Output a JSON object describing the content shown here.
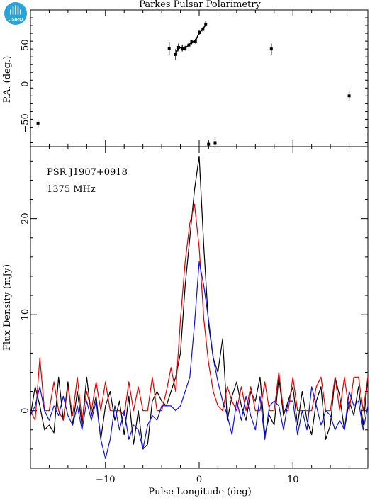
{
  "header": {
    "title": "Parkes Pulsar Polarimetry",
    "logo_text": "CSIRO"
  },
  "annotations": {
    "psr": "PSR J1907+0918",
    "freq": "1375 MHz"
  },
  "chart_data": [
    {
      "type": "scatter",
      "name": "position-angle",
      "title": "Parkes Pulsar Polarimetry",
      "ylabel": "P.A. (deg.)",
      "xlim": [
        -18,
        18
      ],
      "ylim": [
        -80,
        95
      ],
      "yticks": [
        -50,
        0,
        50
      ],
      "yticklabels": [
        "−50",
        "0",
        "50"
      ],
      "points": [
        {
          "x": -17.2,
          "y": -50,
          "err": 5
        },
        {
          "x": -3.2,
          "y": 46,
          "err": 8
        },
        {
          "x": -2.5,
          "y": 38,
          "err": 7
        },
        {
          "x": -2.2,
          "y": 47,
          "err": 5
        },
        {
          "x": -1.8,
          "y": 46,
          "err": 4
        },
        {
          "x": -1.5,
          "y": 46,
          "err": 3
        },
        {
          "x": -1.1,
          "y": 50,
          "err": 3
        },
        {
          "x": -0.8,
          "y": 54,
          "err": 3
        },
        {
          "x": -0.4,
          "y": 55,
          "err": 3
        },
        {
          "x": 0.0,
          "y": 66,
          "err": 3
        },
        {
          "x": 0.4,
          "y": 70,
          "err": 3
        },
        {
          "x": 0.7,
          "y": 77,
          "err": 4
        },
        {
          "x": 1.0,
          "y": -77,
          "err": 6
        },
        {
          "x": 1.7,
          "y": -75,
          "err": 7
        },
        {
          "x": 7.7,
          "y": 45,
          "err": 7
        },
        {
          "x": 16.0,
          "y": -15,
          "err": 7
        }
      ]
    },
    {
      "type": "line",
      "name": "flux-profile",
      "xlabel": "Pulse Longitude (deg)",
      "ylabel": "Flux Density (mJy)",
      "xlim": [
        -18,
        18
      ],
      "ylim": [
        -6,
        27.5
      ],
      "xticks": [
        -10,
        0,
        10
      ],
      "xticklabels": [
        "−10",
        "0",
        "10"
      ],
      "yticks": [
        0,
        10,
        20
      ],
      "yticklabels": [
        "0",
        "10",
        "20"
      ],
      "x": [
        -18,
        -17.5,
        -17,
        -16.5,
        -16,
        -15.5,
        -15,
        -14.5,
        -14,
        -13.5,
        -13,
        -12.5,
        -12,
        -11.5,
        -11,
        -10.5,
        -10,
        -9.5,
        -9,
        -8.5,
        -8,
        -7.5,
        -7,
        -6.5,
        -6,
        -5.5,
        -5,
        -4.5,
        -4,
        -3.5,
        -3,
        -2.5,
        -2,
        -1.5,
        -1,
        -0.5,
        0,
        0.5,
        1,
        1.5,
        2,
        2.5,
        3,
        3.5,
        4,
        4.5,
        5,
        5.5,
        6,
        6.5,
        7,
        7.5,
        8,
        8.5,
        9,
        9.5,
        10,
        10.5,
        11,
        11.5,
        12,
        12.5,
        13,
        13.5,
        14,
        14.5,
        15,
        15.5,
        16,
        16.5,
        17,
        17.5,
        18
      ],
      "series": [
        {
          "name": "total",
          "color": "#000000",
          "values": [
            -0.5,
            2.5,
            0.5,
            -2,
            -1.5,
            -2.3,
            3.5,
            -1,
            3,
            -1.5,
            2,
            -1.5,
            3.5,
            -0.5,
            1.5,
            -3,
            0.5,
            2,
            -1,
            1,
            -2.5,
            1.5,
            -3.5,
            0,
            -4,
            -3.5,
            1,
            2,
            1,
            0.5,
            2,
            3.5,
            6,
            13,
            18,
            23,
            26.5,
            17,
            9,
            5.5,
            4,
            7.5,
            -1,
            1.5,
            3,
            0.5,
            -1,
            2,
            1,
            3.5,
            -2.5,
            -0.5,
            -1.5,
            3.5,
            -0.5,
            1,
            2.5,
            -1.5,
            2,
            -1,
            -2.5,
            1,
            2.5,
            -3,
            -1.5,
            3.5,
            1.5,
            -2,
            1,
            -0.5,
            2.5,
            -1.5,
            3.5
          ]
        },
        {
          "name": "linear",
          "color": "#e00000",
          "values": [
            0,
            -1,
            5.5,
            0,
            0,
            3,
            0,
            -1,
            2.5,
            -0.5,
            3.5,
            -1,
            2,
            0,
            3,
            0,
            3,
            0,
            0,
            0,
            -0.5,
            3,
            0,
            2.5,
            0,
            0,
            3.5,
            0,
            0,
            2,
            4.5,
            2,
            9.5,
            15.5,
            19.5,
            21.5,
            17,
            9.5,
            5,
            2,
            0.5,
            0,
            2.5,
            1,
            0,
            2.5,
            0,
            2.5,
            0,
            0,
            3,
            0,
            0,
            4,
            0,
            0,
            3.5,
            0,
            0,
            0,
            0,
            2.5,
            3.5,
            0,
            0,
            3.5,
            0,
            3.5,
            0,
            3.5,
            3.5,
            0,
            3.5
          ]
        },
        {
          "name": "circular",
          "color": "#1010e0",
          "values": [
            -0.5,
            0.5,
            2.5,
            0,
            -1,
            0.5,
            -0.5,
            1.5,
            -0.5,
            -1.5,
            0.5,
            -2,
            1,
            -1,
            1,
            -3,
            -5,
            -3,
            0.5,
            -2,
            0,
            -3,
            -1.5,
            -2,
            -4,
            -1.5,
            -0.5,
            -1,
            0.5,
            0.5,
            0.5,
            0,
            0.5,
            2,
            3.5,
            9,
            15.5,
            13,
            9.5,
            5.5,
            3,
            1,
            -0.5,
            -2.5,
            1,
            -1,
            1.5,
            -0.5,
            -2,
            1.5,
            -3,
            0.5,
            1,
            0.5,
            -2,
            1,
            1,
            -2.5,
            0,
            -2,
            2.5,
            0.5,
            -1.5,
            0,
            -0.5,
            -2,
            -1,
            -2,
            2,
            0.5,
            1,
            -2,
            0.5
          ]
        }
      ]
    }
  ]
}
